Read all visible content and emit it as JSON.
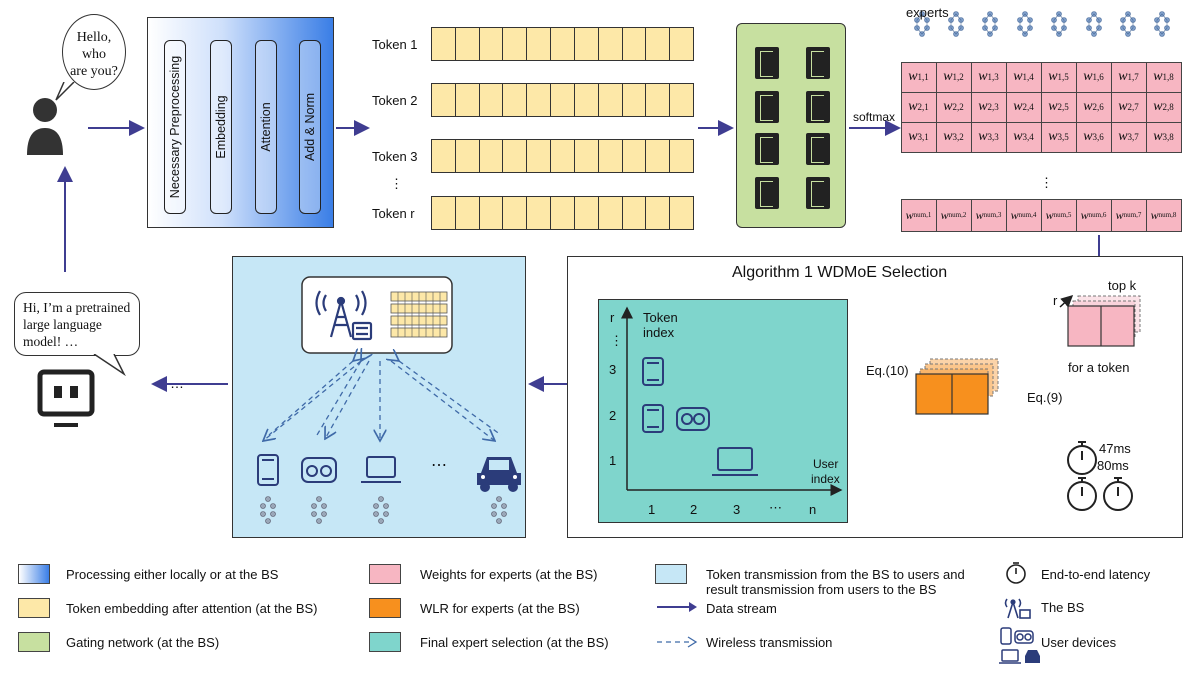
{
  "user_bubble": {
    "line1": "Hello,",
    "line2": "who",
    "line3": "are you?"
  },
  "model_bubble": {
    "line1": "Hi, I’m a pretrained",
    "line2": "large language",
    "line3": "model! …"
  },
  "ellipsis_left": "…",
  "processing_steps": [
    "Necessary Preprocessing",
    "Embedding",
    "Attention",
    "Add & Norm"
  ],
  "tokens": [
    "Token 1",
    "Token 2",
    "Token 3",
    "Token r"
  ],
  "token_vdots": "⋮",
  "experts_label": "experts",
  "softmax_label": "softmax",
  "weights_vdots": "⋮",
  "weights_rows": [
    "1",
    "2",
    "3"
  ],
  "weights_last_row": "num",
  "weights_cols": [
    "1",
    "2",
    "3",
    "4",
    "5",
    "6",
    "7",
    "8"
  ],
  "weight_symbol": "w",
  "algorithm_title": "Algorithm 1 WDMoE Selection",
  "topk": {
    "label": "top k",
    "r_label": "r",
    "caption": "for a token"
  },
  "eq10": "Eq.(10)",
  "eq9": "Eq.(9)",
  "latency": {
    "t1": "47ms",
    "t2": "80ms"
  },
  "selection_plot": {
    "y_axis_label_line1": "Token",
    "y_axis_label_line2": "index",
    "x_axis_label_line1": "User",
    "x_axis_label_line2": "index",
    "y_ticks": [
      "1",
      "2",
      "3",
      "⋮",
      "r"
    ],
    "x_ticks": [
      "1",
      "2",
      "3",
      "⋯",
      "n"
    ]
  },
  "devices_ellipsis": "⋯",
  "legend": [
    {
      "label": "Processing either locally or at the BS",
      "color": "gradient"
    },
    {
      "label": "Token embedding after attention (at the BS)",
      "color": "#fde8a8"
    },
    {
      "label": "Gating network (at the BS)",
      "color": "#c7e0a0"
    },
    {
      "label": "Weights for experts (at the BS)",
      "color": "#f7b6c2"
    },
    {
      "label": "WLR for experts (at the BS)",
      "color": "#f7901e"
    },
    {
      "label": "Final expert selection (at the BS)",
      "color": "#7fd5cc"
    },
    {
      "label": "Token transmission from the BS to users and result transmission from users to the BS",
      "color": "#c6e7f6"
    },
    {
      "label": "Data stream",
      "color": "#3f3d91"
    },
    {
      "label": "Wireless transmission",
      "color": "#3f6aa8"
    },
    {
      "label": "End-to-end latency",
      "icon": "stopwatch-icon"
    },
    {
      "label": "The BS",
      "icon": "base-station-icon"
    },
    {
      "label": "User devices",
      "icon": "user-devices-icon"
    }
  ],
  "colors": {
    "arrow": "#3f3d91",
    "wireless": "#3f6aa8"
  }
}
